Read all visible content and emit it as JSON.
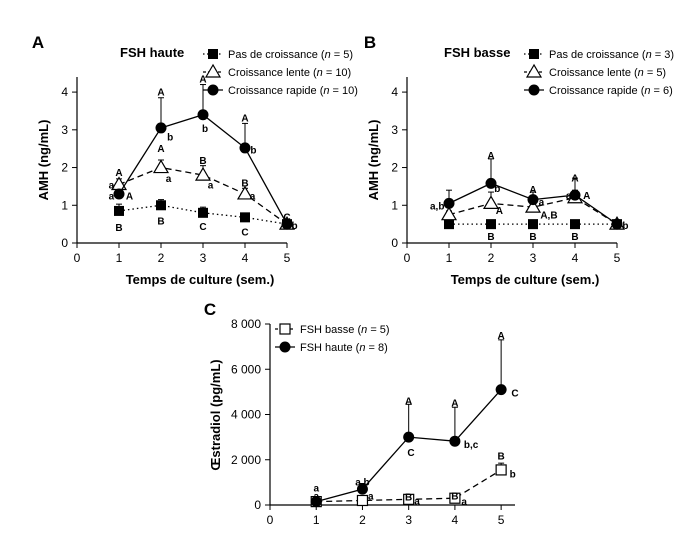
{
  "chart_data": [
    {
      "type": "line",
      "panel": "A",
      "title": "FSH haute",
      "xlabel": "Temps de culture (sem.)",
      "ylabel": "AMH (ng/mL)",
      "xlim": [
        0,
        5
      ],
      "ylim": [
        0,
        4.4
      ],
      "xticks": [
        "0",
        "1",
        "2",
        "3",
        "4",
        "5"
      ],
      "yticks": [
        "0",
        "1",
        "2",
        "3",
        "4"
      ],
      "legend_position": "top-right",
      "series": [
        {
          "name": "Pas de croissance (n = 5)",
          "name_parts": [
            "Pas de croissance (",
            "n",
            " = 5)"
          ],
          "marker": "filled-square",
          "line": "dotted",
          "x": [
            1,
            2,
            3,
            4,
            5
          ],
          "y": [
            0.85,
            1.0,
            0.8,
            0.68,
            0.5
          ],
          "err": [
            0.18,
            0.15,
            0.15,
            0.1,
            0.05
          ]
        },
        {
          "name": "Croissance lente (n = 10)",
          "name_parts": [
            "Croissance lente (",
            "n",
            " = 10)"
          ],
          "marker": "open-triangle",
          "line": "dashed",
          "x": [
            1,
            2,
            3,
            4,
            5
          ],
          "y": [
            1.55,
            2.0,
            1.8,
            1.3,
            0.5
          ],
          "err": [
            0.15,
            0.2,
            0.25,
            0.15,
            0.05
          ]
        },
        {
          "name": "Croissance rapide (n = 10)",
          "name_parts": [
            "Croissance rapide (",
            "n",
            " = 10)"
          ],
          "marker": "filled-circle",
          "line": "solid",
          "x": [
            1,
            2,
            3,
            4,
            5
          ],
          "y": [
            1.3,
            3.05,
            3.4,
            2.52,
            0.5
          ],
          "err": [
            0.1,
            0.8,
            0.8,
            0.65,
            0.05
          ]
        }
      ],
      "annotations": [
        {
          "text": "A",
          "x": 1,
          "y": 1.88
        },
        {
          "text": "a",
          "x": 0.82,
          "y": 1.55
        },
        {
          "text": "a",
          "x": 0.82,
          "y": 1.26
        },
        {
          "text": "A",
          "x": 1.25,
          "y": 1.26
        },
        {
          "text": "B",
          "x": 1,
          "y": 0.42
        },
        {
          "text": "A",
          "x": 2,
          "y": 4.02
        },
        {
          "text": "A",
          "x": 2,
          "y": 2.52
        },
        {
          "text": "b",
          "x": 2.22,
          "y": 2.82
        },
        {
          "text": "a",
          "x": 2.18,
          "y": 1.72
        },
        {
          "text": "B",
          "x": 2,
          "y": 0.6
        },
        {
          "text": "A",
          "x": 3,
          "y": 4.36
        },
        {
          "text": "B",
          "x": 3,
          "y": 2.2
        },
        {
          "text": "b",
          "x": 3.05,
          "y": 3.05
        },
        {
          "text": "a",
          "x": 3.18,
          "y": 1.55
        },
        {
          "text": "C",
          "x": 3,
          "y": 0.45
        },
        {
          "text": "A",
          "x": 4,
          "y": 3.33
        },
        {
          "text": "B",
          "x": 4,
          "y": 1.6
        },
        {
          "text": "b",
          "x": 4.2,
          "y": 2.48
        },
        {
          "text": "a",
          "x": 4.18,
          "y": 1.26
        },
        {
          "text": "C",
          "x": 4,
          "y": 0.3
        },
        {
          "text": "C",
          "x": 5,
          "y": 0.7
        },
        {
          "text": "b",
          "x": 5.18,
          "y": 0.48
        }
      ]
    },
    {
      "type": "line",
      "panel": "B",
      "title": "FSH basse",
      "xlabel": "Temps de culture (sem.)",
      "ylabel": "AMH (ng/mL)",
      "xlim": [
        0,
        5
      ],
      "ylim": [
        0,
        4.4
      ],
      "xticks": [
        "0",
        "1",
        "2",
        "3",
        "4",
        "5"
      ],
      "yticks": [
        "0",
        "1",
        "2",
        "3",
        "4"
      ],
      "legend_position": "top-right",
      "series": [
        {
          "name": "Pas de croissance (n = 3)",
          "name_parts": [
            "Pas de croissance (",
            "n",
            " = 3)"
          ],
          "marker": "filled-square",
          "line": "dotted",
          "x": [
            1,
            2,
            3,
            4,
            5
          ],
          "y": [
            0.5,
            0.5,
            0.5,
            0.5,
            0.5
          ],
          "err": [
            0,
            0,
            0,
            0,
            0
          ]
        },
        {
          "name": "Croissance lente (n = 5)",
          "name_parts": [
            "Croissance lente (",
            "n",
            " = 5)"
          ],
          "marker": "open-triangle",
          "line": "dashed",
          "x": [
            1,
            2,
            3,
            4,
            5
          ],
          "y": [
            0.75,
            1.05,
            0.95,
            1.2,
            0.5
          ],
          "err": [
            0.1,
            0.3,
            0.15,
            0.2,
            0.05
          ]
        },
        {
          "name": "Croissance rapide (n = 6)",
          "name_parts": [
            "Croissance rapide (",
            "n",
            " = 6)"
          ],
          "marker": "filled-circle",
          "line": "solid",
          "x": [
            1,
            2,
            3,
            4,
            5
          ],
          "y": [
            1.05,
            1.58,
            1.15,
            1.27,
            0.5
          ],
          "err": [
            0.35,
            0.65,
            0.2,
            0.45,
            0.05
          ]
        }
      ],
      "annotations": [
        {
          "text": "a,b",
          "x": 0.72,
          "y": 1.0
        },
        {
          "text": "a",
          "x": 1.0,
          "y": 0.58
        },
        {
          "text": "A",
          "x": 2,
          "y": 2.33
        },
        {
          "text": "b",
          "x": 2.15,
          "y": 1.46
        },
        {
          "text": "A",
          "x": 2.2,
          "y": 0.88
        },
        {
          "text": "B",
          "x": 2,
          "y": 0.18
        },
        {
          "text": "A",
          "x": 3,
          "y": 1.43
        },
        {
          "text": "a",
          "x": 3.2,
          "y": 1.1
        },
        {
          "text": "A,B",
          "x": 3.38,
          "y": 0.75
        },
        {
          "text": "B",
          "x": 3,
          "y": 0.18
        },
        {
          "text": "A",
          "x": 4,
          "y": 1.73
        },
        {
          "text": "a",
          "x": 3.85,
          "y": 1.27
        },
        {
          "text": "A",
          "x": 4.28,
          "y": 1.27
        },
        {
          "text": "B",
          "x": 4,
          "y": 0.18
        },
        {
          "text": "b",
          "x": 5.2,
          "y": 0.48
        }
      ]
    },
    {
      "type": "line",
      "panel": "C",
      "title": "",
      "xlabel": "",
      "ylabel": "Œstradiol (pg/mL)",
      "xlim": [
        0,
        5.3
      ],
      "ylim": [
        0,
        8000
      ],
      "xticks": [
        "0",
        "1",
        "2",
        "3",
        "4",
        "5"
      ],
      "yticks": [
        "0",
        "2 000",
        "4 000",
        "6 000",
        "8 000"
      ],
      "legend_position": "top-left",
      "series": [
        {
          "name": "FSH basse (n = 5)",
          "name_parts": [
            "FSH basse (",
            "n",
            " = 5)"
          ],
          "marker": "open-square",
          "line": "dashed",
          "x": [
            1,
            2,
            3,
            4,
            5
          ],
          "y": [
            150,
            200,
            250,
            300,
            1550
          ],
          "err": [
            50,
            50,
            60,
            60,
            300
          ]
        },
        {
          "name": "FSH haute (n = 8)",
          "name_parts": [
            "FSH haute (",
            "n",
            " = 8)"
          ],
          "marker": "filled-circle",
          "line": "solid",
          "x": [
            1,
            2,
            3,
            4,
            5
          ],
          "y": [
            150,
            700,
            3000,
            2820,
            5100
          ],
          "err": [
            80,
            250,
            1450,
            1500,
            2200
          ]
        }
      ],
      "annotations": [
        {
          "text": "a",
          "x": 1,
          "y": 780
        },
        {
          "text": "a",
          "x": 1,
          "y": 420
        },
        {
          "text": "a,b",
          "x": 2,
          "y": 1030
        },
        {
          "text": "a",
          "x": 2.18,
          "y": 420
        },
        {
          "text": "A",
          "x": 3,
          "y": 4620
        },
        {
          "text": "C",
          "x": 3.05,
          "y": 2350
        },
        {
          "text": "B",
          "x": 3,
          "y": 370
        },
        {
          "text": "a",
          "x": 3.18,
          "y": 200
        },
        {
          "text": "A",
          "x": 4,
          "y": 4520
        },
        {
          "text": "b,c",
          "x": 4.35,
          "y": 2700
        },
        {
          "text": "B",
          "x": 4,
          "y": 420
        },
        {
          "text": "a",
          "x": 4.2,
          "y": 180
        },
        {
          "text": "A",
          "x": 5,
          "y": 7520
        },
        {
          "text": "C",
          "x": 5.3,
          "y": 4970
        },
        {
          "text": "B",
          "x": 5,
          "y": 2180
        },
        {
          "text": "b",
          "x": 5.25,
          "y": 1400
        }
      ]
    }
  ],
  "colors": {
    "ink": "#000000",
    "background": "#ffffff"
  }
}
